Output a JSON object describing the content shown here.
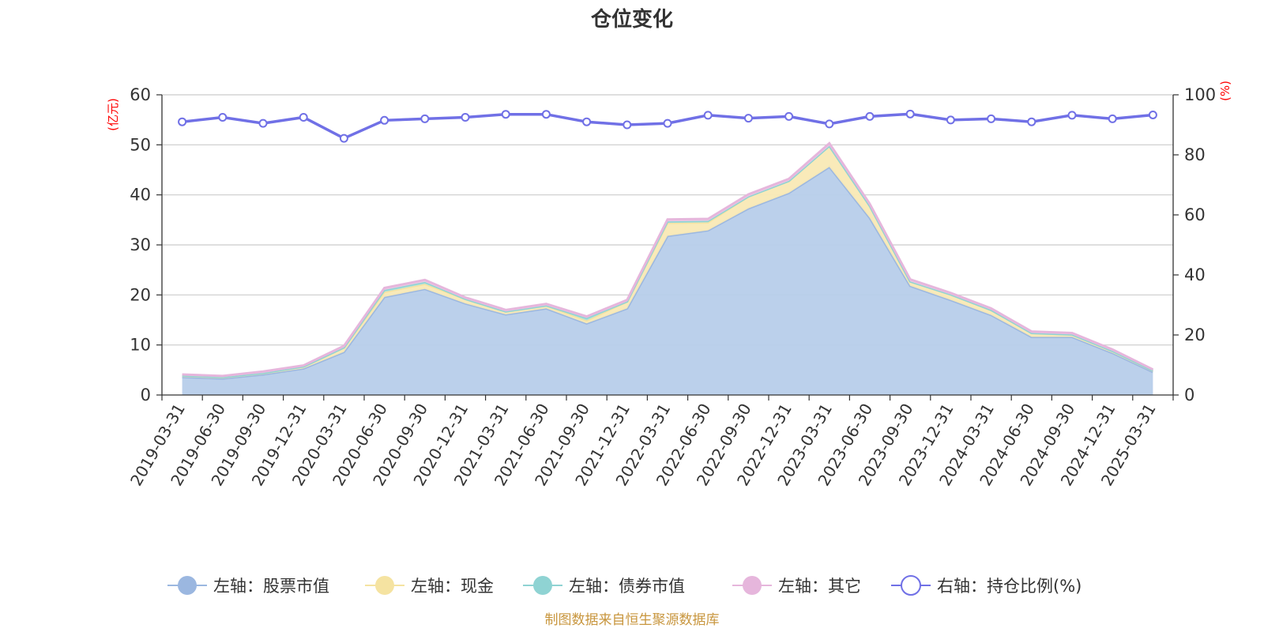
{
  "chart_data": {
    "type": "area",
    "title": "仓位变化",
    "left_unit": "(亿元)",
    "right_unit": "(%)",
    "left_ylim": [
      0,
      60
    ],
    "left_ticks": [
      "0",
      "10",
      "20",
      "30",
      "40",
      "50",
      "60"
    ],
    "right_ylim": [
      0,
      100
    ],
    "right_ticks": [
      "0",
      "20",
      "40",
      "60",
      "80",
      "100"
    ],
    "grid": true,
    "legend_position": "bottom",
    "categories": [
      "2019-03-31",
      "2019-06-30",
      "2019-09-30",
      "2019-12-31",
      "2020-03-31",
      "2020-06-30",
      "2020-09-30",
      "2020-12-31",
      "2021-03-31",
      "2021-06-30",
      "2021-09-30",
      "2021-12-31",
      "2022-03-31",
      "2022-06-30",
      "2022-09-30",
      "2022-12-31",
      "2023-03-31",
      "2023-06-30",
      "2023-09-30",
      "2023-12-31",
      "2024-03-31",
      "2024-06-30",
      "2024-09-30",
      "2024-12-31",
      "2025-03-31"
    ],
    "series": [
      {
        "name": "左轴：股票市值",
        "axis": "left",
        "stacked": true,
        "color": "#9bb7e0",
        "fill": "#b7cdea",
        "values": [
          3.6,
          3.3,
          4.1,
          5.3,
          8.6,
          19.6,
          21.2,
          18.3,
          16.1,
          17.3,
          14.3,
          17.3,
          31.8,
          32.9,
          37.3,
          40.4,
          45.6,
          35.4,
          21.8,
          19.0,
          16.0,
          11.6,
          11.6,
          8.4,
          4.6
        ]
      },
      {
        "name": "左轴：现金",
        "axis": "left",
        "stacked": true,
        "color": "#f5e3a1",
        "fill": "#f9e9b5",
        "values": [
          0.3,
          0.3,
          0.3,
          0.4,
          0.9,
          1.0,
          1.0,
          0.9,
          0.6,
          0.6,
          0.6,
          1.4,
          2.6,
          1.6,
          2.4,
          2.4,
          4.2,
          2.4,
          0.9,
          1.1,
          1.0,
          0.8,
          0.5,
          0.4,
          0.3
        ]
      },
      {
        "name": "左轴：债券市值",
        "axis": "left",
        "stacked": true,
        "color": "#8fd3d3",
        "fill": "#aee0e0",
        "values": [
          0.0,
          0.0,
          0.0,
          0.0,
          0.0,
          0.4,
          0.4,
          0.0,
          0.0,
          0.0,
          0.5,
          0.0,
          0.3,
          0.3,
          0.0,
          0.0,
          0.0,
          0.0,
          0.0,
          0.0,
          0.0,
          0.0,
          0.0,
          0.0,
          0.0
        ]
      },
      {
        "name": "左轴：其它",
        "axis": "left",
        "stacked": true,
        "color": "#e6b6dc",
        "fill": "#efcbe7",
        "values": [
          0.2,
          0.2,
          0.3,
          0.2,
          0.3,
          0.4,
          0.4,
          0.3,
          0.3,
          0.3,
          0.3,
          0.3,
          0.4,
          0.4,
          0.4,
          0.4,
          0.5,
          0.4,
          0.4,
          0.3,
          0.3,
          0.3,
          0.3,
          0.3,
          0.2
        ]
      },
      {
        "name": "右轴：持仓比例(%)",
        "axis": "right",
        "type": "line",
        "color": "#7070e6",
        "values": [
          91,
          92.5,
          90.5,
          92.5,
          85.5,
          91.5,
          92,
          92.5,
          93.5,
          93.5,
          91,
          90,
          90.5,
          93.2,
          92.2,
          92.8,
          90.3,
          92.8,
          93.6,
          91.6,
          92,
          91,
          93.2,
          92,
          93.3
        ]
      }
    ],
    "source_note": "制图数据来自恒生聚源数据库"
  }
}
